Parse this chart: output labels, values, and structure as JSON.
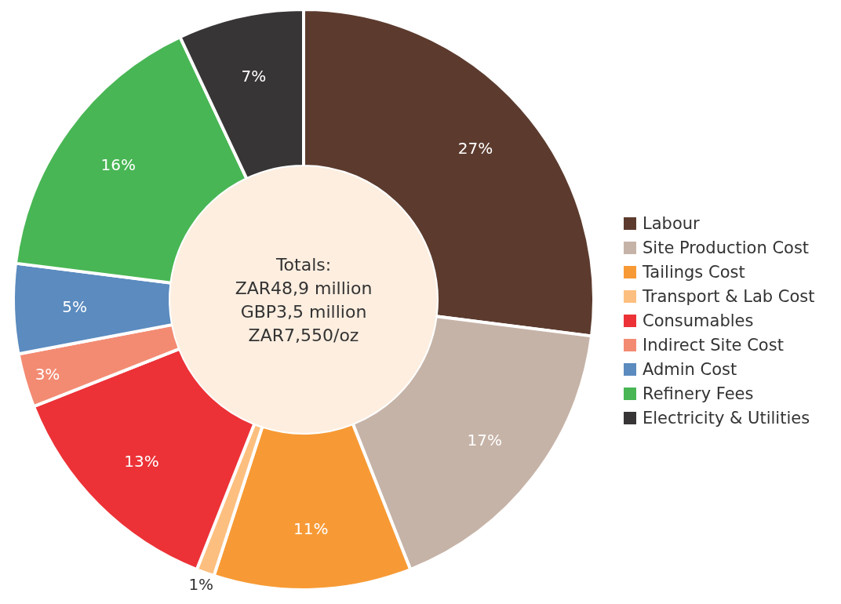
{
  "chart_data": {
    "type": "donut",
    "categories": [
      "Labour",
      "Site Production Cost",
      "Tailings Cost",
      "Transport & Lab Cost",
      "Consumables",
      "Indirect Site Cost",
      "Admin Cost",
      "Refinery Fees",
      "Electricity & Utilities"
    ],
    "values": [
      27,
      17,
      11,
      1,
      13,
      3,
      5,
      16,
      7
    ],
    "colors": [
      "#5c3b2e",
      "#c6b3a7",
      "#f79a35",
      "#fdbf7f",
      "#ec3237",
      "#f38b73",
      "#5b8bbf",
      "#48b654",
      "#383536"
    ],
    "value_labels": [
      "27%",
      "17%",
      "11%",
      "1%",
      "13%",
      "3%",
      "5%",
      "16%",
      "7%"
    ],
    "legend": "right",
    "annotations": [
      "Totals:",
      "ZAR48,9 million",
      "GBP3,5 million",
      "ZAR7,550/oz"
    ]
  }
}
